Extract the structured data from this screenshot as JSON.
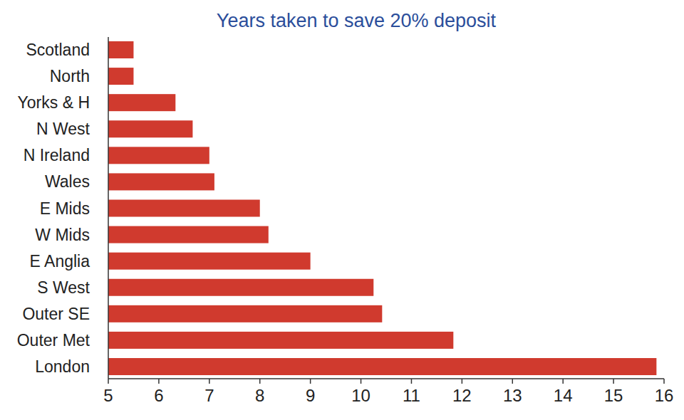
{
  "chart_data": {
    "type": "bar",
    "orientation": "horizontal",
    "title": "Years taken to save 20% deposit",
    "categories": [
      "Scotland",
      "North",
      "Yorks & H",
      "N West",
      "N Ireland",
      "Wales",
      "E Mids",
      "W Mids",
      "E Anglia",
      "S West",
      "Outer SE",
      "Outer Met",
      "London"
    ],
    "values": [
      5.5,
      5.5,
      6.33,
      6.67,
      7.0,
      7.1,
      8.0,
      8.17,
      9.0,
      10.25,
      10.42,
      11.83,
      15.85
    ],
    "color": "#d03a2e",
    "xlim": [
      5,
      16
    ],
    "xticks": [
      5,
      6,
      7,
      8,
      9,
      10,
      11,
      12,
      13,
      14,
      15,
      16
    ],
    "grid": false
  }
}
